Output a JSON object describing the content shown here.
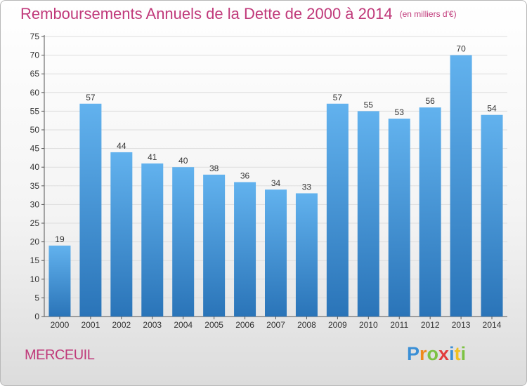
{
  "title": "Remboursements Annuels de la Dette de 2000 à 2014",
  "subtitle": "(en milliers d'€)",
  "commune": "MERCEUIL",
  "logo": {
    "letters": [
      "P",
      "r",
      "o",
      "x",
      "i",
      "t",
      "i"
    ],
    "colors": [
      "#3a8fd6",
      "#f08a1c",
      "#7cc242",
      "#e23b3b",
      "#3a8fd6",
      "#f0c020",
      "#7cc242"
    ]
  },
  "colors": {
    "title": "#c0397a",
    "bar_top": "#62b2ee",
    "bar_bottom": "#2a74b8",
    "grid": "#dddddd",
    "axis": "#555555"
  },
  "chart_data": {
    "type": "bar",
    "categories": [
      "2000",
      "2001",
      "2002",
      "2003",
      "2004",
      "2005",
      "2006",
      "2007",
      "2008",
      "2009",
      "2010",
      "2011",
      "2012",
      "2013",
      "2014"
    ],
    "values": [
      19,
      57,
      44,
      41,
      40,
      38,
      36,
      34,
      33,
      57,
      55,
      53,
      56,
      70,
      54
    ],
    "ylim": [
      0,
      75
    ],
    "yticks": [
      0,
      5,
      10,
      15,
      20,
      25,
      30,
      35,
      40,
      45,
      50,
      55,
      60,
      65,
      70,
      75
    ],
    "grid": true
  }
}
